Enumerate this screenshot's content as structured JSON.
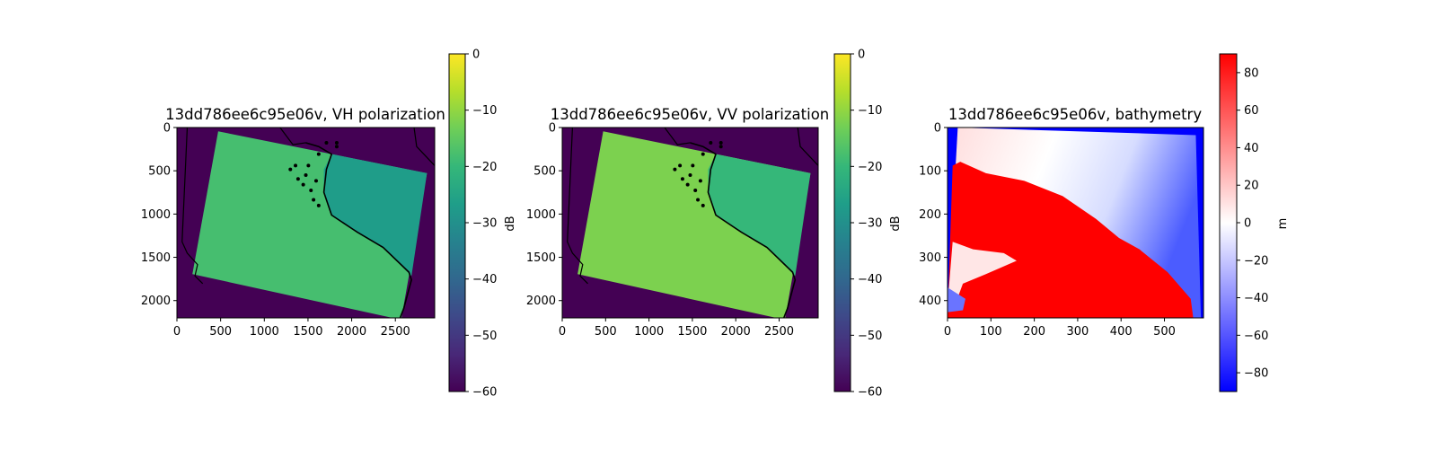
{
  "chart_data": [
    {
      "type": "heatmap",
      "title": "13dd786ee6c95e06v, VH polarization",
      "x_ticks": [
        0,
        500,
        1000,
        1500,
        2000,
        2500
      ],
      "y_ticks": [
        0,
        500,
        1000,
        1500,
        2000
      ],
      "xlim": [
        0,
        2950
      ],
      "ylim": [
        2200,
        0
      ],
      "colormap": "viridis",
      "colorbar": {
        "label": "dB",
        "range": [
          -60,
          0
        ],
        "ticks": [
          0,
          -10,
          -20,
          -30,
          -40,
          -50,
          -60
        ],
        "tick_labels": [
          "0",
          "−10",
          "−20",
          "−30",
          "−40",
          "−50",
          "−60"
        ]
      },
      "nodata_value_db": -60,
      "land_value_db": -18,
      "water_value_db": -27,
      "coastline": true
    },
    {
      "type": "heatmap",
      "title": "13dd786ee6c95e06v, VV polarization",
      "x_ticks": [
        0,
        500,
        1000,
        1500,
        2000,
        2500
      ],
      "y_ticks": [
        0,
        500,
        1000,
        1500,
        2000
      ],
      "xlim": [
        0,
        2950
      ],
      "ylim": [
        2200,
        0
      ],
      "colormap": "viridis",
      "colorbar": {
        "label": "dB",
        "range": [
          -60,
          0
        ],
        "ticks": [
          0,
          -10,
          -20,
          -30,
          -40,
          -50,
          -60
        ],
        "tick_labels": [
          "0",
          "−10",
          "−20",
          "−30",
          "−40",
          "−50",
          "−60"
        ]
      },
      "nodata_value_db": -60,
      "land_value_db": -12,
      "water_value_db": -20,
      "coastline": true
    },
    {
      "type": "heatmap",
      "title": "13dd786ee6c95e06v, bathymetry",
      "x_ticks": [
        0,
        100,
        200,
        300,
        400,
        500
      ],
      "y_ticks": [
        0,
        100,
        200,
        300,
        400
      ],
      "xlim": [
        0,
        590
      ],
      "ylim": [
        440,
        0
      ],
      "colormap": "bwr",
      "colorbar": {
        "label": "m",
        "range": [
          -90,
          90
        ],
        "ticks": [
          80,
          60,
          40,
          20,
          0,
          -20,
          -40,
          -60,
          -80
        ],
        "tick_labels": [
          "80",
          "60",
          "40",
          "20",
          "0",
          "−20",
          "−40",
          "−60",
          "−80"
        ]
      },
      "land_value_m": 90,
      "nodata_value_m": -90
    }
  ],
  "colors": {
    "viridis": [
      "#440154",
      "#482878",
      "#3e4989",
      "#31688e",
      "#26828e",
      "#1f9e89",
      "#35b779",
      "#6ece58",
      "#b5de2b",
      "#fde725"
    ],
    "bwr": [
      "#0000ff",
      "#ffffff",
      "#ff0000"
    ]
  }
}
